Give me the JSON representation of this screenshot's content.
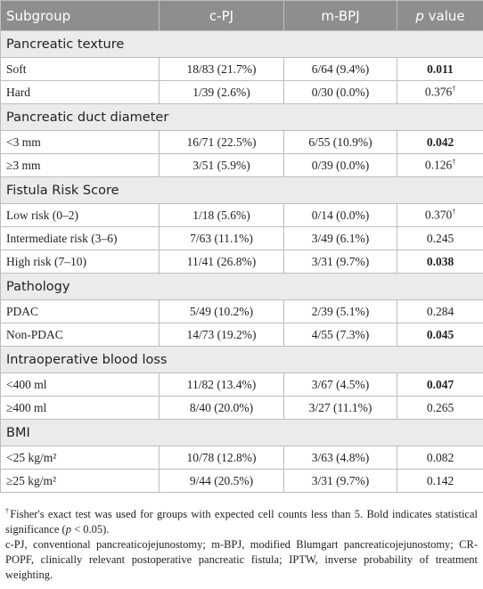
{
  "header": {
    "subgroup": "Subgroup",
    "cpj": "c-PJ",
    "mbpj": "m-BPJ",
    "p_italic": "p",
    "p_rest": " value"
  },
  "groups": [
    {
      "title": "Pancreatic texture",
      "rows": [
        {
          "label": "Soft",
          "cpj": "18/83 (21.7%)",
          "mbpj": "6/64 (9.4%)",
          "p": "0.011",
          "bold": true
        },
        {
          "label": "Hard",
          "cpj": "1/39 (2.6%)",
          "mbpj": "0/30 (0.0%)",
          "p": "0.376",
          "sup": "†"
        }
      ]
    },
    {
      "title": "Pancreatic duct diameter",
      "rows": [
        {
          "label": "<3 mm",
          "cpj": "16/71 (22.5%)",
          "mbpj": "6/55 (10.9%)",
          "p": "0.042",
          "bold": true
        },
        {
          "label": "≥3 mm",
          "cpj": "3/51 (5.9%)",
          "mbpj": "0/39 (0.0%)",
          "p": "0.126",
          "sup": "†"
        }
      ]
    },
    {
      "title": "Fistula Risk Score",
      "rows": [
        {
          "label": "Low risk (0–2)",
          "cpj": "1/18 (5.6%)",
          "mbpj": "0/14 (0.0%)",
          "p": "0.370",
          "sup": "†"
        },
        {
          "label": "Intermediate risk (3–6)",
          "cpj": "7/63 (11.1%)",
          "mbpj": "3/49 (6.1%)",
          "p": "0.245"
        },
        {
          "label": "High risk (7–10)",
          "cpj": "11/41 (26.8%)",
          "mbpj": "3/31 (9.7%)",
          "p": "0.038",
          "bold": true
        }
      ]
    },
    {
      "title": "Pathology",
      "rows": [
        {
          "label": "PDAC",
          "cpj": "5/49 (10.2%)",
          "mbpj": "2/39 (5.1%)",
          "p": "0.284"
        },
        {
          "label": "Non-PDAC",
          "cpj": "14/73 (19.2%)",
          "mbpj": "4/55 (7.3%)",
          "p": "0.045",
          "bold": true
        }
      ]
    },
    {
      "title": "Intraoperative blood loss",
      "rows": [
        {
          "label": "<400 ml",
          "cpj": "11/82 (13.4%)",
          "mbpj": "3/67 (4.5%)",
          "p": "0.047",
          "bold": true
        },
        {
          "label": "≥400 ml",
          "cpj": "8/40 (20.0%)",
          "mbpj": "3/27 (11.1%)",
          "p": "0.265"
        }
      ]
    },
    {
      "title": "BMI",
      "rows": [
        {
          "label": "<25 kg/m²",
          "cpj": "10/78 (12.8%)",
          "mbpj": "3/63 (4.8%)",
          "p": "0.082"
        },
        {
          "label": "≥25 kg/m²",
          "cpj": "9/44 (20.5%)",
          "mbpj": "3/31 (9.7%)",
          "p": "0.142"
        }
      ]
    }
  ],
  "footnotes": {
    "mark": "†",
    "text1": "Fisher's exact test was used for groups with expected cell counts less than 5. Bold indicates statistical significance (",
    "italic": "p",
    "text2": " < 0.05).",
    "abbrev": "c-PJ, conventional pancreaticojejunostomy; m-BPJ, modified Blumgart pancreaticojejunostomy; CR-POPF, clinically relevant postoperative pancreatic fistula; IPTW, inverse probability of treatment weighting."
  }
}
